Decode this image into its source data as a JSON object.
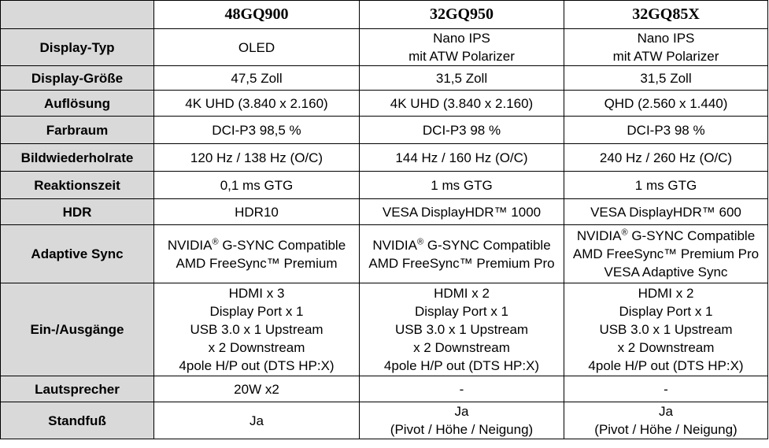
{
  "table": {
    "header": [
      "",
      "48GQ900",
      "32GQ950",
      "32GQ85X"
    ],
    "rows": [
      {
        "label": "Display-Typ",
        "cells": [
          [
            "OLED"
          ],
          [
            "Nano IPS",
            "mit ATW Polarizer"
          ],
          [
            "Nano IPS",
            "mit ATW Polarizer"
          ]
        ]
      },
      {
        "label": "Display-Größe",
        "cells": [
          [
            "47,5 Zoll"
          ],
          [
            "31,5 Zoll"
          ],
          [
            "31,5 Zoll"
          ]
        ]
      },
      {
        "label": "Auflösung",
        "cells": [
          [
            "4K UHD (3.840 x 2.160)"
          ],
          [
            "4K UHD (3.840 x 2.160)"
          ],
          [
            "QHD (2.560 x 1.440)"
          ]
        ]
      },
      {
        "label": "Farbraum",
        "cells": [
          [
            "DCI-P3 98,5 %"
          ],
          [
            "DCI-P3 98 %"
          ],
          [
            "DCI-P3 98 %"
          ]
        ]
      },
      {
        "label": "Bildwiederholrate",
        "cells": [
          [
            "120 Hz / 138 Hz (O/C)"
          ],
          [
            "144 Hz / 160 Hz (O/C)"
          ],
          [
            "240 Hz / 260 Hz (O/C)"
          ]
        ]
      },
      {
        "label": "Reaktionszeit",
        "cells": [
          [
            "0,1 ms GTG"
          ],
          [
            "1 ms GTG"
          ],
          [
            "1 ms GTG"
          ]
        ]
      },
      {
        "label": "HDR",
        "cells": [
          [
            "HDR10"
          ],
          [
            "VESA DisplayHDR™ 1000"
          ],
          [
            "VESA DisplayHDR™ 600"
          ]
        ]
      },
      {
        "label": "Adaptive Sync",
        "cells": [
          [
            "NVIDIA® G-SYNC Compatible",
            "AMD FreeSync™ Premium"
          ],
          [
            "NVIDIA® G-SYNC Compatible",
            "AMD FreeSync™ Premium Pro"
          ],
          [
            "NVIDIA® G-SYNC Compatible",
            "AMD FreeSync™ Premium Pro",
            "VESA Adaptive Sync"
          ]
        ]
      },
      {
        "label": "Ein-/Ausgänge",
        "cells": [
          [
            "HDMI x 3",
            "Display Port x 1",
            "USB 3.0 x 1 Upstream",
            "x 2 Downstream",
            "4pole H/P out (DTS HP:X)"
          ],
          [
            "HDMI x 2",
            "Display Port x 1",
            "USB 3.0 x 1 Upstream",
            "x 2 Downstream",
            "4pole H/P out (DTS HP:X)"
          ],
          [
            "HDMI x 2",
            "Display Port x 1",
            "USB 3.0 x 1 Upstream",
            "x 2 Downstream",
            "4pole H/P out (DTS HP:X)"
          ]
        ]
      },
      {
        "label": "Lautsprecher",
        "cells": [
          [
            "20W x2"
          ],
          [
            "-"
          ],
          [
            "-"
          ]
        ]
      },
      {
        "label": "Standfuß",
        "cells": [
          [
            "Ja"
          ],
          [
            "Ja",
            "(Pivot / Höhe / Neigung)"
          ],
          [
            "Ja",
            "(Pivot / Höhe / Neigung)"
          ]
        ]
      }
    ]
  }
}
